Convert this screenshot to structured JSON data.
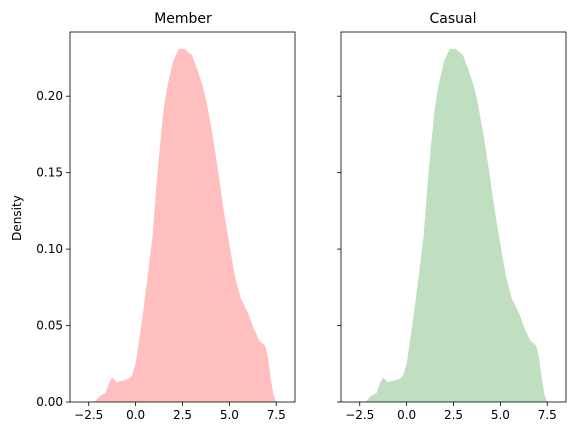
{
  "chart_data": [
    {
      "type": "area",
      "title": "Member",
      "xlabel": "",
      "ylabel": "Density",
      "xlim": [
        -3.5,
        8.5
      ],
      "ylim": [
        0,
        0.242
      ],
      "xticks": [
        -2.5,
        0.0,
        2.5,
        5.0,
        7.5
      ],
      "xtick_labels": [
        "−2.5",
        "0.0",
        "2.5",
        "5.0",
        "7.5"
      ],
      "yticks": [
        0.0,
        0.05,
        0.1,
        0.15,
        0.2
      ],
      "ytick_labels": [
        "0.00",
        "0.05",
        "0.10",
        "0.15",
        "0.20"
      ],
      "fill_color": "#ffbfbf",
      "x": [
        -2.2,
        -1.9,
        -1.6,
        -1.4,
        -1.25,
        -1.0,
        -0.7,
        -0.4,
        -0.2,
        0.0,
        0.3,
        0.6,
        0.9,
        1.1,
        1.3,
        1.5,
        1.7,
        2.0,
        2.3,
        2.6,
        2.8,
        3.0,
        3.3,
        3.6,
        3.8,
        4.1,
        4.4,
        4.7,
        5.0,
        5.3,
        5.6,
        6.0,
        6.3,
        6.6,
        6.9,
        7.05,
        7.2,
        7.35,
        7.5
      ],
      "y": [
        0.0,
        0.004,
        0.006,
        0.013,
        0.016,
        0.013,
        0.014,
        0.015,
        0.017,
        0.025,
        0.05,
        0.078,
        0.108,
        0.14,
        0.168,
        0.192,
        0.207,
        0.223,
        0.231,
        0.231,
        0.229,
        0.227,
        0.217,
        0.206,
        0.195,
        0.175,
        0.151,
        0.125,
        0.103,
        0.082,
        0.068,
        0.058,
        0.048,
        0.04,
        0.037,
        0.03,
        0.016,
        0.005,
        0.0
      ]
    },
    {
      "type": "area",
      "title": "Casual",
      "xlabel": "",
      "ylabel": "",
      "xlim": [
        -3.5,
        8.5
      ],
      "ylim": [
        0,
        0.242
      ],
      "xticks": [
        -2.5,
        0.0,
        2.5,
        5.0,
        7.5
      ],
      "xtick_labels": [
        "−2.5",
        "0.0",
        "2.5",
        "5.0",
        "7.5"
      ],
      "yticks": [
        0.0,
        0.05,
        0.1,
        0.15,
        0.2
      ],
      "ytick_labels": [
        "",
        "",
        "",
        "",
        ""
      ],
      "fill_color": "#c0dfc0",
      "x": [
        -2.2,
        -1.9,
        -1.6,
        -1.4,
        -1.25,
        -1.0,
        -0.7,
        -0.4,
        -0.2,
        0.0,
        0.3,
        0.6,
        0.9,
        1.1,
        1.3,
        1.5,
        1.7,
        2.0,
        2.3,
        2.6,
        2.8,
        3.0,
        3.3,
        3.6,
        3.8,
        4.1,
        4.4,
        4.7,
        5.0,
        5.3,
        5.6,
        6.0,
        6.3,
        6.6,
        6.9,
        7.05,
        7.2,
        7.35,
        7.5
      ],
      "y": [
        0.0,
        0.004,
        0.006,
        0.013,
        0.016,
        0.013,
        0.014,
        0.015,
        0.017,
        0.025,
        0.05,
        0.078,
        0.108,
        0.14,
        0.168,
        0.192,
        0.207,
        0.223,
        0.231,
        0.231,
        0.229,
        0.227,
        0.217,
        0.206,
        0.195,
        0.175,
        0.151,
        0.125,
        0.103,
        0.082,
        0.068,
        0.058,
        0.048,
        0.04,
        0.037,
        0.03,
        0.016,
        0.005,
        0.0
      ]
    }
  ]
}
